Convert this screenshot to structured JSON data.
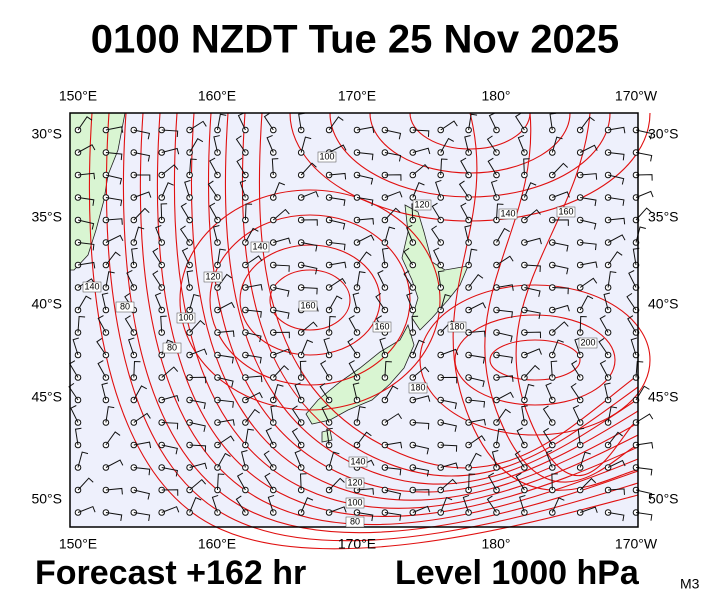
{
  "header": {
    "title": "0100 NZDT Tue 25 Nov 2025"
  },
  "map": {
    "lon_labels": [
      "150°E",
      "160°E",
      "170°E",
      "180°",
      "170°W"
    ],
    "lat_labels": [
      "30°S",
      "35°S",
      "40°S",
      "45°S",
      "50°S"
    ],
    "contour_labels": [
      100,
      120,
      140,
      160,
      140,
      120,
      140,
      80,
      100,
      80,
      160,
      160,
      180,
      200,
      180,
      140,
      120,
      100,
      80
    ]
  },
  "footer": {
    "forecast": "Forecast +162 hr",
    "level": "Level 1000 hPa",
    "model": "M3"
  }
}
